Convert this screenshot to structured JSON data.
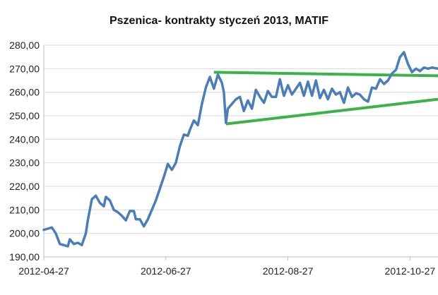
{
  "chart_data": {
    "type": "line",
    "title": "Pszenica- kontrakty styczeń 2013, MATIF",
    "xlabel": "",
    "ylabel": "",
    "ylim": [
      190,
      280
    ],
    "y_ticks": [
      "190,00",
      "200,00",
      "210,00",
      "220,00",
      "230,00",
      "240,00",
      "250,00",
      "260,00",
      "270,00",
      "280,00"
    ],
    "x_ticks": [
      "2012-04-27",
      "2012-06-27",
      "2012-08-27",
      "2012-10-27"
    ],
    "x_range": [
      "2012-04-27",
      "2012-11-10"
    ],
    "grid": true,
    "legend": "none",
    "series": [
      {
        "name": "",
        "color": "#4a7ebb",
        "points": [
          [
            "2012-04-27",
            201.5
          ],
          [
            "2012-04-29",
            202.0
          ],
          [
            "2012-05-01",
            202.5
          ],
          [
            "2012-05-03",
            200.0
          ],
          [
            "2012-05-05",
            195.5
          ],
          [
            "2012-05-07",
            195.0
          ],
          [
            "2012-05-09",
            194.5
          ],
          [
            "2012-05-10",
            197.5
          ],
          [
            "2012-05-12",
            195.5
          ],
          [
            "2012-05-14",
            196.0
          ],
          [
            "2012-05-16",
            195.0
          ],
          [
            "2012-05-18",
            200.0
          ],
          [
            "2012-05-19",
            205.5
          ],
          [
            "2012-05-21",
            214.5
          ],
          [
            "2012-05-23",
            216.0
          ],
          [
            "2012-05-25",
            213.0
          ],
          [
            "2012-05-27",
            211.5
          ],
          [
            "2012-05-28",
            215.5
          ],
          [
            "2012-05-30",
            214.0
          ],
          [
            "2012-06-01",
            210.0
          ],
          [
            "2012-06-03",
            209.0
          ],
          [
            "2012-06-05",
            207.5
          ],
          [
            "2012-06-07",
            205.5
          ],
          [
            "2012-06-09",
            209.5
          ],
          [
            "2012-06-11",
            209.5
          ],
          [
            "2012-06-12",
            206.0
          ],
          [
            "2012-06-14",
            206.0
          ],
          [
            "2012-06-16",
            203.0
          ],
          [
            "2012-06-18",
            206.0
          ],
          [
            "2012-06-20",
            210.0
          ],
          [
            "2012-06-22",
            214.0
          ],
          [
            "2012-06-24",
            219.0
          ],
          [
            "2012-06-26",
            224.0
          ],
          [
            "2012-06-28",
            229.5
          ],
          [
            "2012-06-30",
            227.0
          ],
          [
            "2012-07-02",
            230.0
          ],
          [
            "2012-07-04",
            237.0
          ],
          [
            "2012-07-06",
            242.0
          ],
          [
            "2012-07-08",
            241.5
          ],
          [
            "2012-07-09",
            244.0
          ],
          [
            "2012-07-11",
            248.0
          ],
          [
            "2012-07-13",
            246.0
          ],
          [
            "2012-07-15",
            255.0
          ],
          [
            "2012-07-17",
            262.0
          ],
          [
            "2012-07-19",
            266.5
          ],
          [
            "2012-07-21",
            261.5
          ],
          [
            "2012-07-23",
            267.5
          ],
          [
            "2012-07-25",
            264.0
          ],
          [
            "2012-07-26",
            260.0
          ],
          [
            "2012-07-27",
            247.0
          ],
          [
            "2012-07-28",
            253.0
          ],
          [
            "2012-07-30",
            255.0
          ],
          [
            "2012-08-01",
            257.0
          ],
          [
            "2012-08-03",
            258.0
          ],
          [
            "2012-08-05",
            252.0
          ],
          [
            "2012-08-07",
            256.5
          ],
          [
            "2012-08-09",
            253.0
          ],
          [
            "2012-08-11",
            261.0
          ],
          [
            "2012-08-13",
            258.0
          ],
          [
            "2012-08-15",
            255.5
          ],
          [
            "2012-08-17",
            260.5
          ],
          [
            "2012-08-19",
            258.0
          ],
          [
            "2012-08-21",
            258.0
          ],
          [
            "2012-08-23",
            265.5
          ],
          [
            "2012-08-25",
            258.5
          ],
          [
            "2012-08-27",
            263.0
          ],
          [
            "2012-08-29",
            259.0
          ],
          [
            "2012-08-31",
            261.5
          ],
          [
            "2012-09-02",
            264.0
          ],
          [
            "2012-09-04",
            258.5
          ],
          [
            "2012-09-06",
            264.5
          ],
          [
            "2012-09-08",
            258.5
          ],
          [
            "2012-09-10",
            265.0
          ],
          [
            "2012-09-12",
            257.5
          ],
          [
            "2012-09-14",
            261.0
          ],
          [
            "2012-09-16",
            257.0
          ],
          [
            "2012-09-18",
            261.5
          ],
          [
            "2012-09-20",
            259.0
          ],
          [
            "2012-09-22",
            260.0
          ],
          [
            "2012-09-24",
            255.5
          ],
          [
            "2012-09-26",
            262.0
          ],
          [
            "2012-09-28",
            258.0
          ],
          [
            "2012-09-30",
            259.5
          ],
          [
            "2012-10-02",
            259.0
          ],
          [
            "2012-10-04",
            257.0
          ],
          [
            "2012-10-06",
            256.0
          ],
          [
            "2012-10-08",
            262.0
          ],
          [
            "2012-10-10",
            261.5
          ],
          [
            "2012-10-12",
            265.5
          ],
          [
            "2012-10-14",
            263.5
          ],
          [
            "2012-10-16",
            265.0
          ],
          [
            "2012-10-18",
            268.0
          ],
          [
            "2012-10-20",
            269.5
          ],
          [
            "2012-10-22",
            275.0
          ],
          [
            "2012-10-24",
            277.0
          ],
          [
            "2012-10-26",
            272.0
          ],
          [
            "2012-10-28",
            268.5
          ],
          [
            "2012-10-30",
            270.0
          ],
          [
            "2012-11-01",
            269.0
          ],
          [
            "2012-11-03",
            270.5
          ],
          [
            "2012-11-05",
            270.0
          ],
          [
            "2012-11-07",
            270.5
          ],
          [
            "2012-11-10",
            270.0
          ]
        ]
      }
    ],
    "annotations": [
      {
        "type": "trendline",
        "color": "#3cb34a",
        "from": [
          "2012-07-21",
          268.5
        ],
        "to": [
          "2012-11-10",
          267.0
        ]
      },
      {
        "type": "trendline",
        "color": "#3cb34a",
        "from": [
          "2012-07-27",
          246.5
        ],
        "to": [
          "2012-11-10",
          257.0
        ]
      }
    ]
  }
}
